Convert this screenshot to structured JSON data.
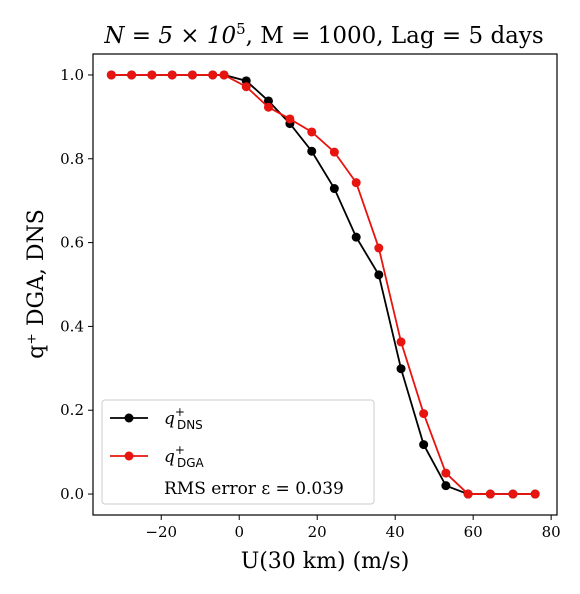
{
  "chart_data": {
    "type": "line",
    "title_main": "N = 5 × 10",
    "title_sup": "5",
    "title_rest": ",  M = 1000, Lag = 5 days",
    "xlabel": "U(30 km) (m/s)",
    "ylabel": "q⁺ DGA, DNS",
    "xlim": [
      -37.5,
      81.5
    ],
    "ylim": [
      -0.05,
      1.05
    ],
    "xticks": [
      -20,
      0,
      20,
      40,
      60,
      80
    ],
    "xtick_labels": [
      "−20",
      "0",
      "20",
      "40",
      "60",
      "80"
    ],
    "yticks": [
      0.0,
      0.2,
      0.4,
      0.6,
      0.8,
      1.0
    ],
    "ytick_labels": [
      "0.0",
      "0.2",
      "0.4",
      "0.6",
      "0.8",
      "1.0"
    ],
    "grid": false,
    "legend_placement": "lower-left",
    "x": [
      -32.8,
      -27.6,
      -22.4,
      -17.2,
      -12.0,
      -6.8,
      -3.9,
      1.8,
      7.5,
      13.0,
      18.6,
      24.4,
      30.0,
      35.8,
      41.5,
      47.3,
      53.0,
      58.7,
      64.4,
      70.2,
      75.9
    ],
    "series": [
      {
        "name_base": "q",
        "name_sup": "+",
        "name_sub": "DNS",
        "color": "#000000",
        "values": [
          1.0,
          1.0,
          1.0,
          1.0,
          1.0,
          1.0,
          1.0,
          0.986,
          0.938,
          0.884,
          0.818,
          0.729,
          0.613,
          0.523,
          0.299,
          0.118,
          0.02,
          0.0,
          0.0,
          0.0,
          0.0
        ]
      },
      {
        "name_base": "q",
        "name_sup": "+",
        "name_sub": "DGA",
        "color": "#e8140f",
        "values": [
          1.0,
          1.0,
          1.0,
          1.0,
          1.0,
          1.0,
          1.0,
          0.972,
          0.923,
          0.895,
          0.864,
          0.816,
          0.743,
          0.587,
          0.363,
          0.192,
          0.05,
          0.0,
          0.0,
          0.0,
          0.0
        ]
      }
    ],
    "annotation": "RMS error ε = 0.039"
  }
}
